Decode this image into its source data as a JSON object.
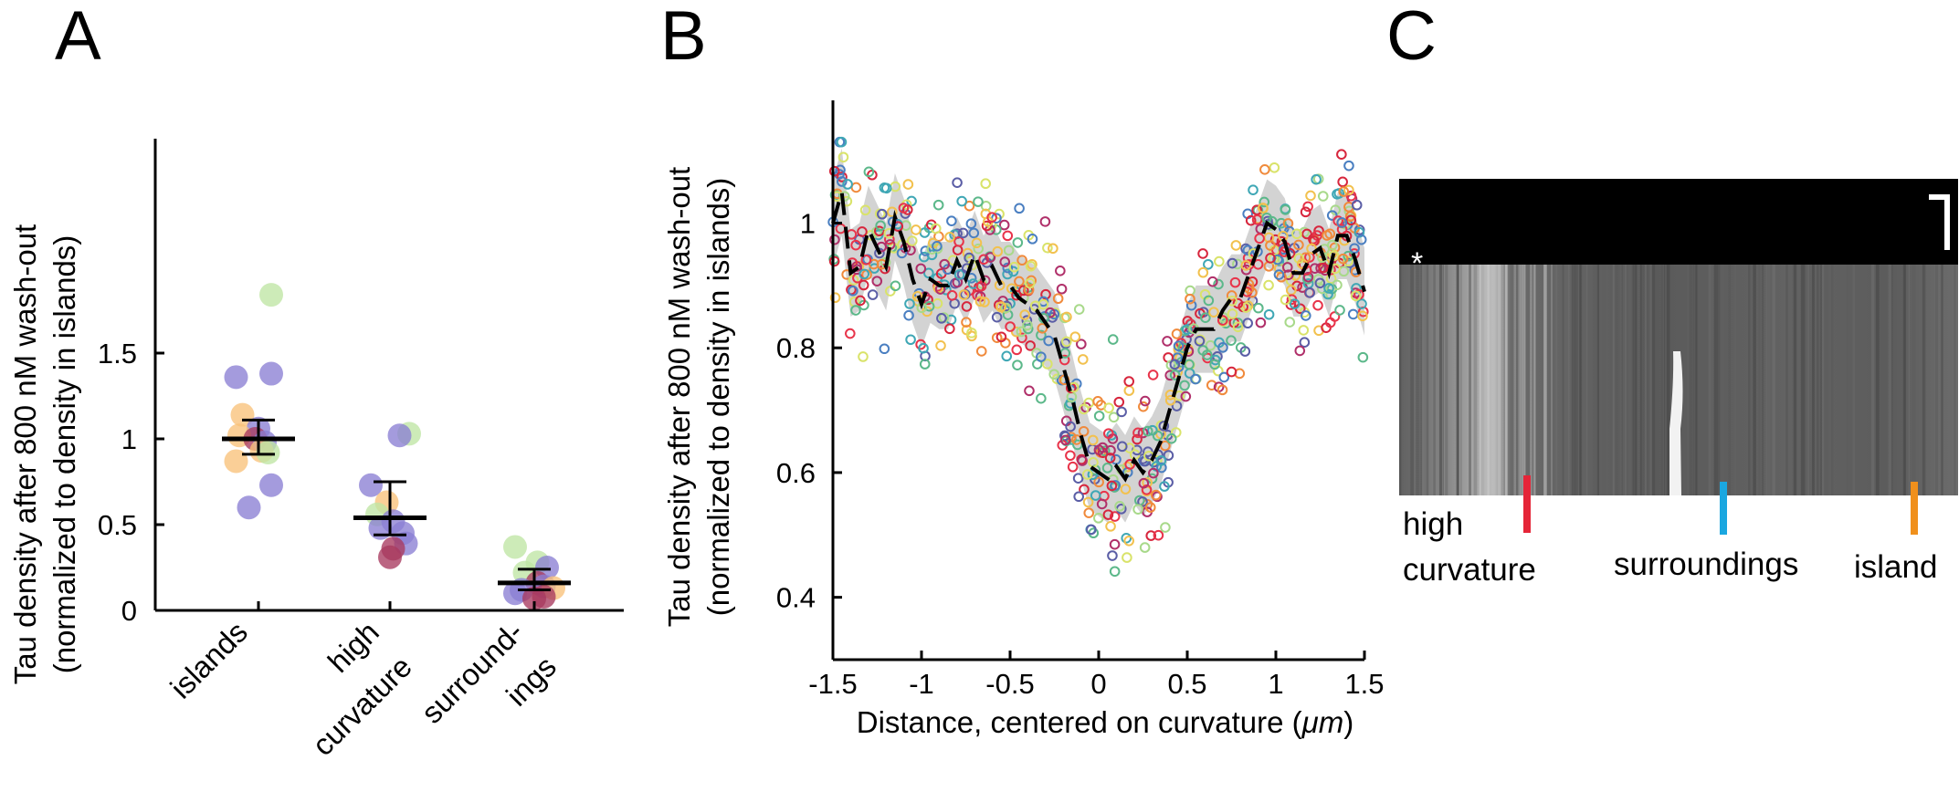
{
  "panels": {
    "a": "A",
    "b": "B",
    "c": "C"
  },
  "chart_data": [
    {
      "panel": "A",
      "type": "scatter",
      "ylabel": [
        "Tau density after 800 nM wash-out",
        "(normalized to density in islands)"
      ],
      "ylim": [
        0,
        2.0
      ],
      "yticks": [
        0,
        0.5,
        1,
        1.5
      ],
      "ytick_labels": [
        "0",
        "0.5",
        "1",
        "1.5"
      ],
      "categories": [
        [
          "islands"
        ],
        [
          "high",
          "curvature"
        ],
        [
          "surround-",
          "ings"
        ]
      ],
      "colors": {
        "purple": "#8b7fd4",
        "orange": "#f8c27a",
        "green": "#bfe6a4",
        "maroon": "#a83a5f",
        "bar": "#000000"
      },
      "points": [
        {
          "cat": 0,
          "y": 1.84,
          "c": "green",
          "dx": 0.2
        },
        {
          "cat": 0,
          "y": 1.38,
          "c": "purple",
          "dx": 0.2
        },
        {
          "cat": 0,
          "y": 1.36,
          "c": "purple",
          "dx": -0.35
        },
        {
          "cat": 0,
          "y": 1.14,
          "c": "orange",
          "dx": -0.25
        },
        {
          "cat": 0,
          "y": 1.06,
          "c": "purple",
          "dx": 0.0
        },
        {
          "cat": 0,
          "y": 1.02,
          "c": "orange",
          "dx": -0.3
        },
        {
          "cat": 0,
          "y": 1.0,
          "c": "maroon",
          "dx": -0.05
        },
        {
          "cat": 0,
          "y": 0.98,
          "c": "purple",
          "dx": 0.1
        },
        {
          "cat": 0,
          "y": 0.93,
          "c": "orange",
          "dx": 0.05
        },
        {
          "cat": 0,
          "y": 0.92,
          "c": "green",
          "dx": 0.15
        },
        {
          "cat": 0,
          "y": 0.87,
          "c": "orange",
          "dx": -0.35
        },
        {
          "cat": 0,
          "y": 0.73,
          "c": "purple",
          "dx": 0.2
        },
        {
          "cat": 0,
          "y": 0.6,
          "c": "purple",
          "dx": -0.15
        },
        {
          "cat": 1,
          "y": 1.03,
          "c": "green",
          "dx": 0.3
        },
        {
          "cat": 1,
          "y": 1.02,
          "c": "purple",
          "dx": 0.15
        },
        {
          "cat": 1,
          "y": 0.73,
          "c": "purple",
          "dx": -0.3
        },
        {
          "cat": 1,
          "y": 0.63,
          "c": "orange",
          "dx": -0.05
        },
        {
          "cat": 1,
          "y": 0.56,
          "c": "green",
          "dx": -0.2
        },
        {
          "cat": 1,
          "y": 0.52,
          "c": "purple",
          "dx": 0.05
        },
        {
          "cat": 1,
          "y": 0.48,
          "c": "purple",
          "dx": -0.15
        },
        {
          "cat": 1,
          "y": 0.45,
          "c": "purple",
          "dx": 0.2
        },
        {
          "cat": 1,
          "y": 0.39,
          "c": "purple",
          "dx": 0.25
        },
        {
          "cat": 1,
          "y": 0.36,
          "c": "maroon",
          "dx": 0.05
        },
        {
          "cat": 1,
          "y": 0.31,
          "c": "maroon",
          "dx": 0.0
        },
        {
          "cat": 2,
          "y": 0.37,
          "c": "green",
          "dx": -0.3
        },
        {
          "cat": 2,
          "y": 0.28,
          "c": "green",
          "dx": 0.05
        },
        {
          "cat": 2,
          "y": 0.25,
          "c": "purple",
          "dx": 0.2
        },
        {
          "cat": 2,
          "y": 0.22,
          "c": "green",
          "dx": -0.15
        },
        {
          "cat": 2,
          "y": 0.16,
          "c": "maroon",
          "dx": 0.05
        },
        {
          "cat": 2,
          "y": 0.14,
          "c": "purple",
          "dx": 0.15
        },
        {
          "cat": 2,
          "y": 0.13,
          "c": "orange",
          "dx": 0.3
        },
        {
          "cat": 2,
          "y": 0.12,
          "c": "purple",
          "dx": -0.2
        },
        {
          "cat": 2,
          "y": 0.1,
          "c": "purple",
          "dx": -0.3
        },
        {
          "cat": 2,
          "y": 0.08,
          "c": "maroon",
          "dx": 0.15
        },
        {
          "cat": 2,
          "y": 0.07,
          "c": "maroon",
          "dx": 0.0
        }
      ],
      "summary": [
        {
          "mean": 1.0,
          "low": 0.91,
          "high": 1.11
        },
        {
          "mean": 0.54,
          "low": 0.44,
          "high": 0.75
        },
        {
          "mean": 0.16,
          "low": 0.12,
          "high": 0.24
        }
      ]
    },
    {
      "panel": "B",
      "type": "scatter",
      "xlabel_main": "Distance, centered on curvature (",
      "xlabel_unit": "μm",
      "xlabel_end": ")",
      "ylabel": [
        "Tau density after 800 nM wash-out",
        "(normalized to density in islands)"
      ],
      "xlim": [
        -1.5,
        1.5
      ],
      "ylim": [
        0.3,
        1.15
      ],
      "xticks": [
        -1.5,
        -1,
        -0.5,
        0,
        0.5,
        1,
        1.5
      ],
      "xtick_labels": [
        "-1.5",
        "-1",
        "-0.5",
        "0",
        "0.5",
        "1",
        "1.5"
      ],
      "yticks": [
        0.4,
        0.6,
        0.8,
        1
      ],
      "ytick_labels": [
        "0.4",
        "0.6",
        "0.8",
        "1"
      ],
      "palette": [
        "#d7263d",
        "#e8344a",
        "#f08a3c",
        "#f2c14e",
        "#d9e36a",
        "#a8d98a",
        "#5cb88a",
        "#3fa7b5",
        "#4a7fc1",
        "#5b5ea6",
        "#b0306a"
      ],
      "n_points": 720,
      "mean_line": {
        "x": [
          -1.5,
          -1.45,
          -1.4,
          -1.35,
          -1.3,
          -1.25,
          -1.2,
          -1.15,
          -1.1,
          -1.05,
          -1.0,
          -0.95,
          -0.9,
          -0.85,
          -0.8,
          -0.75,
          -0.7,
          -0.65,
          -0.6,
          -0.55,
          -0.5,
          -0.45,
          -0.4,
          -0.35,
          -0.3,
          -0.25,
          -0.2,
          -0.15,
          -0.1,
          -0.05,
          0.0,
          0.05,
          0.1,
          0.15,
          0.2,
          0.25,
          0.3,
          0.35,
          0.4,
          0.45,
          0.5,
          0.55,
          0.6,
          0.65,
          0.7,
          0.75,
          0.8,
          0.85,
          0.9,
          0.95,
          1.0,
          1.05,
          1.1,
          1.15,
          1.2,
          1.25,
          1.3,
          1.35,
          1.4,
          1.45,
          1.5
        ],
        "y": [
          1.0,
          1.05,
          0.92,
          0.93,
          0.99,
          0.96,
          0.93,
          1.01,
          0.97,
          0.91,
          0.87,
          0.91,
          0.9,
          0.9,
          0.94,
          0.91,
          0.95,
          0.91,
          0.93,
          0.9,
          0.9,
          0.88,
          0.87,
          0.86,
          0.84,
          0.82,
          0.77,
          0.72,
          0.66,
          0.61,
          0.6,
          0.59,
          0.61,
          0.59,
          0.62,
          0.6,
          0.62,
          0.65,
          0.7,
          0.75,
          0.8,
          0.83,
          0.83,
          0.83,
          0.86,
          0.88,
          0.88,
          0.92,
          0.96,
          1.0,
          0.99,
          0.97,
          0.92,
          0.92,
          0.95,
          0.96,
          0.92,
          0.98,
          0.98,
          0.94,
          0.89
        ]
      },
      "band_halfwidth": 0.07
    },
    {
      "panel": "C",
      "type": "image",
      "asterisk": "*",
      "labels": [
        {
          "lines": [
            "high",
            "curvature"
          ],
          "color": "#e52538"
        },
        {
          "lines": [
            "surroundings"
          ],
          "color": "#1aa7e0"
        },
        {
          "lines": [
            "island"
          ],
          "color": "#f0901c"
        }
      ]
    }
  ]
}
